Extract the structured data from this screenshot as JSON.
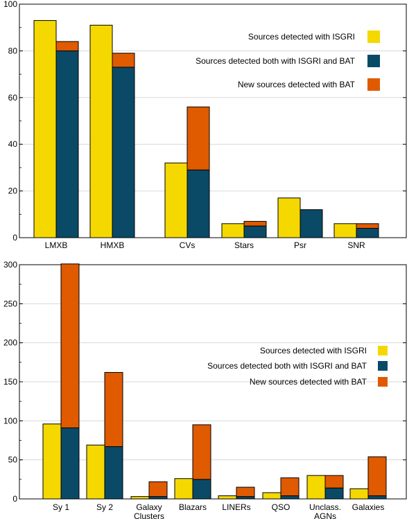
{
  "colors": {
    "isgri": "#f5d800",
    "both": "#0a4a66",
    "new_bat": "#e05a00",
    "grid": "#d8d8d8"
  },
  "chart_data": [
    {
      "type": "bar",
      "title": "",
      "xlabel": "",
      "ylabel": "",
      "ylim": [
        0,
        100
      ],
      "yticks": [
        "0",
        "20",
        "40",
        "60",
        "80",
        "100"
      ],
      "grid": true,
      "legend_position": "top-right",
      "categories": [
        [
          "LMXB"
        ],
        [
          "HMXB"
        ],
        [
          "CVs"
        ],
        [
          "Stars"
        ],
        [
          "Psr"
        ],
        [
          "SNR"
        ]
      ],
      "series": [
        {
          "name": "Sources detected with ISGRI",
          "values": [
            93,
            91,
            32,
            6,
            17,
            6
          ]
        },
        {
          "name": "Sources detected both with ISGRI and BAT",
          "values": [
            80,
            73,
            29,
            5,
            12,
            4
          ]
        },
        {
          "name": "New sources detected with BAT",
          "values": [
            4,
            6,
            27,
            2,
            0,
            2
          ]
        }
      ]
    },
    {
      "type": "bar",
      "title": "",
      "xlabel": "",
      "ylabel": "",
      "ylim": [
        0,
        300
      ],
      "yticks": [
        "0",
        "50",
        "100",
        "150",
        "200",
        "250",
        "300"
      ],
      "grid": true,
      "legend_position": "right",
      "categories": [
        [
          "Sy 1"
        ],
        [
          "Sy 2"
        ],
        [
          "Galaxy",
          "Clusters"
        ],
        [
          "Blazars"
        ],
        [
          "LINERs"
        ],
        [
          "QSO"
        ],
        [
          "Unclass.",
          "AGNs"
        ],
        [
          "Galaxies"
        ]
      ],
      "series": [
        {
          "name": "Sources detected with ISGRI",
          "values": [
            96,
            69,
            3,
            26,
            4,
            8,
            30,
            13
          ]
        },
        {
          "name": "Sources detected both with ISGRI and BAT",
          "values": [
            91,
            67,
            3,
            25,
            3,
            4,
            14,
            4
          ]
        },
        {
          "name": "New sources detected with BAT",
          "values": [
            210,
            95,
            19,
            70,
            12,
            23,
            16,
            50
          ]
        }
      ]
    }
  ]
}
